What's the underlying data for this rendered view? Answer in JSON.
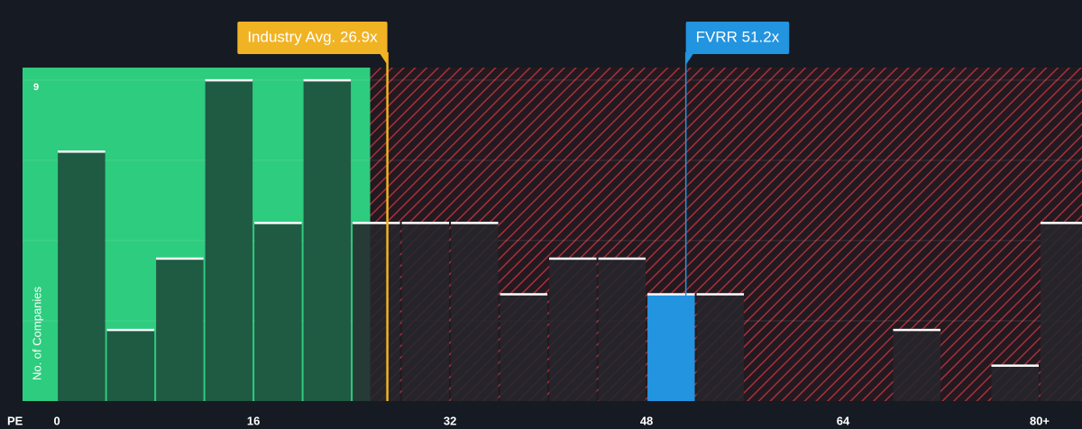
{
  "chart_data": {
    "type": "histogram",
    "x_label": "PE",
    "y_label": "No. of Companies",
    "bins": [
      0,
      4,
      8,
      12,
      16,
      20,
      24,
      28,
      32,
      36,
      40,
      44,
      48,
      52,
      56,
      60,
      64,
      68,
      72,
      76,
      80,
      84
    ],
    "counts": [
      7,
      2,
      4,
      9,
      5,
      9,
      5,
      5,
      5,
      3,
      4,
      4,
      3,
      3,
      0,
      0,
      0,
      2,
      0,
      1,
      5
    ],
    "xlim": [
      -2.8,
      83.45
    ],
    "ylim": [
      0,
      9.35
    ],
    "xticks": [
      0,
      16,
      32,
      48,
      64,
      {
        "value": 80,
        "label": "80+"
      }
    ],
    "yticks": [
      9
    ],
    "grid_lines": [
      2.25,
      4.5,
      6.75,
      9
    ],
    "fair_boundary": 25.5,
    "annotations": [
      {
        "label": "Industry Avg. 26.9x",
        "value": 26.9,
        "color": "#f0b323"
      },
      {
        "label": "FVRR 51.2x",
        "value": 51.2,
        "color": "#2394df"
      }
    ],
    "colors": {
      "fair": "#2ecc7e",
      "bar": "#1e4a3b",
      "bar_over": "#26262c",
      "highlight": "#2394df",
      "hatch": "#a8303a"
    }
  }
}
